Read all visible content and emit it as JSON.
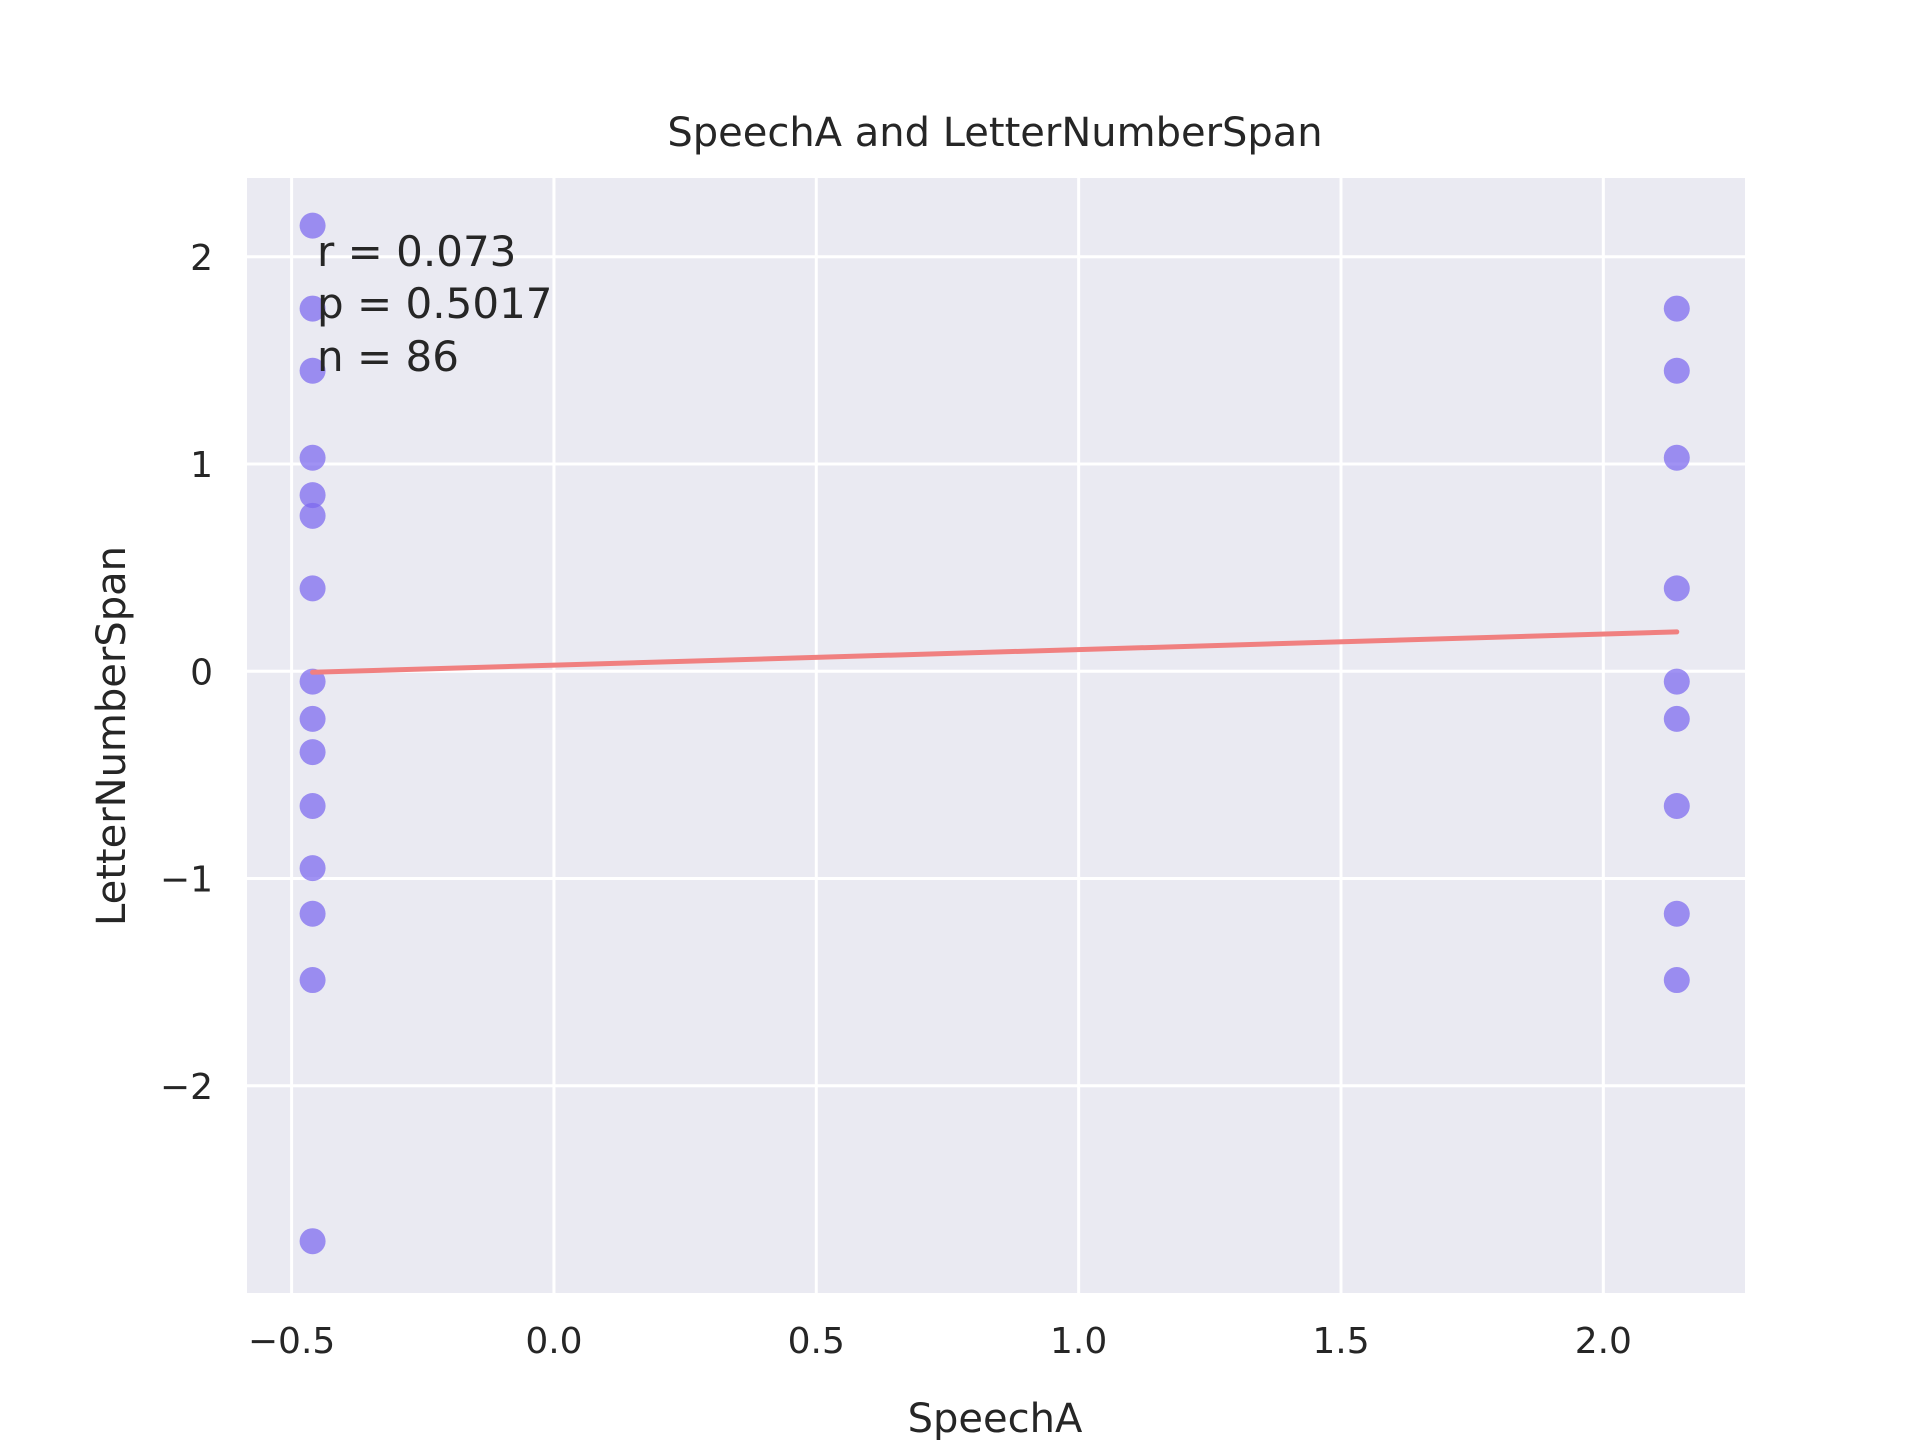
{
  "chart_data": {
    "type": "scatter",
    "title": "SpeechA and LetterNumberSpan",
    "xlabel": "SpeechA",
    "ylabel": "LetterNumberSpan",
    "xlim": [
      -0.585,
      2.27
    ],
    "ylim": [
      -3.0,
      2.38
    ],
    "xticks": [
      {
        "value": -0.5,
        "label": "−0.5"
      },
      {
        "value": 0.0,
        "label": "0.0"
      },
      {
        "value": 0.5,
        "label": "0.5"
      },
      {
        "value": 1.0,
        "label": "1.0"
      },
      {
        "value": 1.5,
        "label": "1.5"
      },
      {
        "value": 2.0,
        "label": "2.0"
      }
    ],
    "yticks": [
      {
        "value": -2,
        "label": "−2"
      },
      {
        "value": -1,
        "label": "−1"
      },
      {
        "value": 0,
        "label": "0"
      },
      {
        "value": 1,
        "label": "1"
      },
      {
        "value": 2,
        "label": "2"
      }
    ],
    "grid": true,
    "background": "#eaeaf2",
    "grid_color": "#ffffff",
    "point_color": "#7b68ee",
    "line_color": "#f08080",
    "points": [
      {
        "x": -0.46,
        "y": 2.15
      },
      {
        "x": -0.46,
        "y": 1.75
      },
      {
        "x": -0.46,
        "y": 1.45
      },
      {
        "x": -0.46,
        "y": 1.03
      },
      {
        "x": -0.46,
        "y": 0.85
      },
      {
        "x": -0.46,
        "y": 0.75
      },
      {
        "x": -0.46,
        "y": 0.4
      },
      {
        "x": -0.46,
        "y": -0.05
      },
      {
        "x": -0.46,
        "y": -0.23
      },
      {
        "x": -0.46,
        "y": -0.39
      },
      {
        "x": -0.46,
        "y": -0.65
      },
      {
        "x": -0.46,
        "y": -0.95
      },
      {
        "x": -0.46,
        "y": -1.17
      },
      {
        "x": -0.46,
        "y": -1.49
      },
      {
        "x": -0.46,
        "y": -2.75
      },
      {
        "x": 2.14,
        "y": 1.75
      },
      {
        "x": 2.14,
        "y": 1.45
      },
      {
        "x": 2.14,
        "y": 1.03
      },
      {
        "x": 2.14,
        "y": 0.4
      },
      {
        "x": 2.14,
        "y": -0.05
      },
      {
        "x": 2.14,
        "y": -0.23
      },
      {
        "x": 2.14,
        "y": -0.65
      },
      {
        "x": 2.14,
        "y": -1.17
      },
      {
        "x": 2.14,
        "y": -1.49
      }
    ],
    "regression_line": {
      "x": [
        -0.46,
        2.14
      ],
      "y": [
        -0.005,
        0.19
      ]
    },
    "annotations": [
      "r = 0.073",
      "p = 0.5017",
      "n = 86"
    ]
  }
}
